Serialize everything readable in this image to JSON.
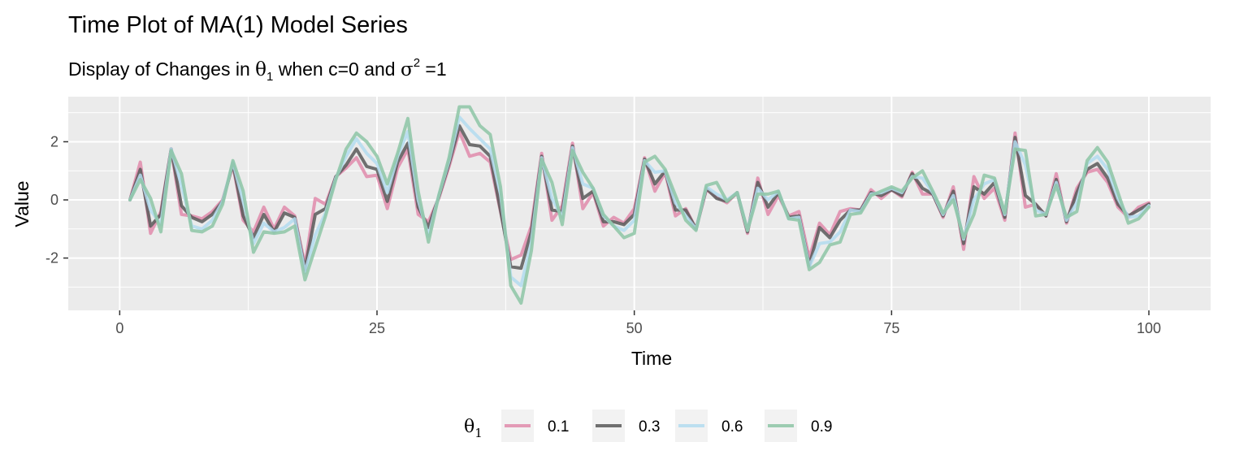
{
  "chart_data": {
    "type": "line",
    "title": "Time Plot of MA(1) Model Series",
    "subtitle": {
      "prefix": "Display of Changes in ",
      "symbol": "θ",
      "symbol_subscript": "1",
      "middle": " when c=0 and ",
      "symbol2": "σ",
      "symbol2_superscript": "2",
      "suffix": " =1"
    },
    "xlabel": "Time",
    "ylabel": "Value",
    "xlim": [
      -5,
      106
    ],
    "ylim": [
      -3.8,
      3.55
    ],
    "x_ticks": [
      0,
      25,
      50,
      75,
      100
    ],
    "x_tick_labels": [
      "0",
      "25",
      "50",
      "75",
      "100"
    ],
    "y_ticks": [
      -2,
      0,
      2
    ],
    "y_tick_labels": [
      "-2",
      "0",
      "2"
    ],
    "grid": true,
    "panel_background": "#ebebeb",
    "legend": {
      "position": "bottom",
      "title_symbol": "θ",
      "title_subscript": "1"
    },
    "x": [
      1,
      2,
      3,
      4,
      5,
      6,
      7,
      8,
      9,
      10,
      11,
      12,
      13,
      14,
      15,
      16,
      17,
      18,
      19,
      20,
      21,
      22,
      23,
      24,
      25,
      26,
      27,
      28,
      29,
      30,
      31,
      32,
      33,
      34,
      35,
      36,
      37,
      38,
      39,
      40,
      41,
      42,
      43,
      44,
      45,
      46,
      47,
      48,
      49,
      50,
      51,
      52,
      53,
      54,
      55,
      56,
      57,
      58,
      59,
      60,
      61,
      62,
      63,
      64,
      65,
      66,
      67,
      68,
      69,
      70,
      71,
      72,
      73,
      74,
      75,
      76,
      77,
      78,
      79,
      80,
      81,
      82,
      83,
      84,
      85,
      86,
      87,
      88,
      89,
      90,
      91,
      92,
      93,
      94,
      95,
      96,
      97,
      98,
      99,
      100
    ],
    "series": [
      {
        "name": "0.1",
        "color": "#e08bab",
        "opacity": 0.85,
        "values": [
          0,
          1.3,
          -1.15,
          -0.4,
          1.75,
          -0.5,
          -0.55,
          -0.65,
          -0.4,
          0,
          1.2,
          -0.7,
          -1.1,
          -0.25,
          -1.0,
          -0.25,
          -0.55,
          -2.25,
          0.05,
          -0.15,
          0.8,
          1.1,
          1.45,
          0.8,
          0.85,
          -0.3,
          1.1,
          1.75,
          -0.5,
          -0.75,
          0.05,
          1.15,
          2.35,
          1.5,
          1.6,
          1.3,
          -0.4,
          -2.05,
          -1.9,
          -0.9,
          1.6,
          -0.7,
          -0.2,
          1.95,
          -0.3,
          0.25,
          -0.9,
          -0.6,
          -0.8,
          -0.3,
          1.45,
          0.3,
          0.95,
          -0.55,
          -0.3,
          -1.0,
          0.35,
          0.1,
          -0.1,
          0.25,
          -1.15,
          0.75,
          -0.5,
          0.15,
          -0.55,
          -0.4,
          -2.0,
          -0.8,
          -1.2,
          -0.4,
          -0.3,
          -0.35,
          0.35,
          0.05,
          0.35,
          0.1,
          0.95,
          0.2,
          0.2,
          -0.6,
          0.45,
          -1.7,
          0.8,
          0.05,
          0.4,
          -0.7,
          2.3,
          -0.25,
          -0.15,
          -0.55,
          0.9,
          -0.8,
          0.4,
          0.95,
          1.05,
          0.6,
          -0.25,
          -0.6,
          -0.25,
          -0.1
        ]
      },
      {
        "name": "0.3",
        "color": "#595959",
        "opacity": 0.85,
        "values": [
          0,
          1.05,
          -0.9,
          -0.5,
          1.75,
          -0.2,
          -0.6,
          -0.75,
          -0.5,
          -0.05,
          1.25,
          -0.55,
          -1.3,
          -0.5,
          -1.1,
          -0.45,
          -0.6,
          -2.4,
          -0.5,
          -0.3,
          0.8,
          1.2,
          1.75,
          1.15,
          1.05,
          -0.05,
          1.3,
          1.95,
          -0.25,
          -0.95,
          0.1,
          1.25,
          2.55,
          1.9,
          1.85,
          1.5,
          -0.35,
          -2.3,
          -2.35,
          -1.1,
          1.5,
          -0.35,
          -0.4,
          1.85,
          0.05,
          0.3,
          -0.75,
          -0.75,
          -0.85,
          -0.5,
          1.4,
          0.55,
          1.0,
          -0.35,
          -0.35,
          -1.0,
          0.4,
          0.05,
          -0.05,
          0.25,
          -1.1,
          0.6,
          -0.25,
          0.25,
          -0.6,
          -0.55,
          -2.25,
          -0.95,
          -1.3,
          -0.7,
          -0.35,
          -0.35,
          0.25,
          0.15,
          0.35,
          0.15,
          0.9,
          0.4,
          0.2,
          -0.55,
          0.3,
          -1.5,
          0.45,
          0.2,
          0.6,
          -0.6,
          2.15,
          0.15,
          -0.15,
          -0.55,
          0.7,
          -0.75,
          0.25,
          1.05,
          1.25,
          0.75,
          -0.15,
          -0.55,
          -0.35,
          -0.15
        ]
      },
      {
        "name": "0.6",
        "color": "#b3dcf0",
        "opacity": 0.85,
        "values": [
          0,
          0.85,
          -0.35,
          -0.85,
          1.75,
          0.5,
          -0.9,
          -1.0,
          -0.7,
          -0.05,
          1.3,
          -0.05,
          -1.5,
          -0.8,
          -1.1,
          -0.95,
          -0.65,
          -2.5,
          -1.2,
          -0.45,
          0.75,
          1.5,
          2.1,
          1.6,
          1.25,
          0.25,
          1.5,
          2.35,
          0.0,
          -1.25,
          0.15,
          1.35,
          2.85,
          2.45,
          2.1,
          1.75,
          0.2,
          -2.65,
          -2.95,
          -1.45,
          1.45,
          0.05,
          -0.6,
          1.8,
          0.55,
          0.4,
          -0.55,
          -0.9,
          -1.05,
          -0.7,
          1.35,
          0.95,
          1.0,
          -0.1,
          -0.55,
          -1.0,
          0.45,
          0.2,
          0.0,
          0.25,
          -1.05,
          0.4,
          0.0,
          0.3,
          -0.65,
          -0.6,
          -2.3,
          -1.5,
          -1.45,
          -1.1,
          -0.35,
          -0.4,
          0.2,
          0.25,
          0.4,
          0.25,
          0.8,
          0.75,
          0.25,
          -0.5,
          0.15,
          -1.35,
          0.0,
          0.55,
          0.7,
          -0.5,
          2.0,
          1.2,
          -0.35,
          -0.5,
          0.6,
          -0.7,
          -0.1,
          1.25,
          1.5,
          1.05,
          0.05,
          -0.6,
          -0.55,
          -0.2
        ]
      },
      {
        "name": "0.9",
        "color": "#8dc6a6",
        "opacity": 0.85,
        "values": [
          0,
          0.7,
          0.05,
          -1.1,
          1.7,
          0.9,
          -1.05,
          -1.1,
          -0.9,
          -0.15,
          1.35,
          0.3,
          -1.8,
          -1.1,
          -1.15,
          -1.1,
          -0.9,
          -2.75,
          -1.65,
          -0.55,
          0.7,
          1.75,
          2.3,
          2.0,
          1.5,
          0.55,
          1.6,
          2.8,
          0.3,
          -1.45,
          0.15,
          1.45,
          3.2,
          3.2,
          2.55,
          2.25,
          0.45,
          -2.95,
          -3.55,
          -1.75,
          1.4,
          0.6,
          -0.85,
          1.7,
          0.95,
          0.4,
          -0.5,
          -0.9,
          -1.3,
          -1.15,
          1.3,
          1.5,
          1.05,
          0.15,
          -0.7,
          -1.05,
          0.5,
          0.6,
          -0.05,
          0.25,
          -1.05,
          0.2,
          0.2,
          0.3,
          -0.65,
          -0.7,
          -2.4,
          -2.15,
          -1.55,
          -1.45,
          -0.5,
          -0.45,
          0.15,
          0.3,
          0.45,
          0.3,
          0.75,
          1.0,
          0.3,
          -0.45,
          0.0,
          -1.3,
          -0.5,
          0.85,
          0.75,
          -0.45,
          1.75,
          1.7,
          -0.55,
          -0.5,
          0.5,
          -0.6,
          -0.4,
          1.35,
          1.8,
          1.3,
          0.25,
          -0.8,
          -0.65,
          -0.25
        ]
      }
    ]
  }
}
